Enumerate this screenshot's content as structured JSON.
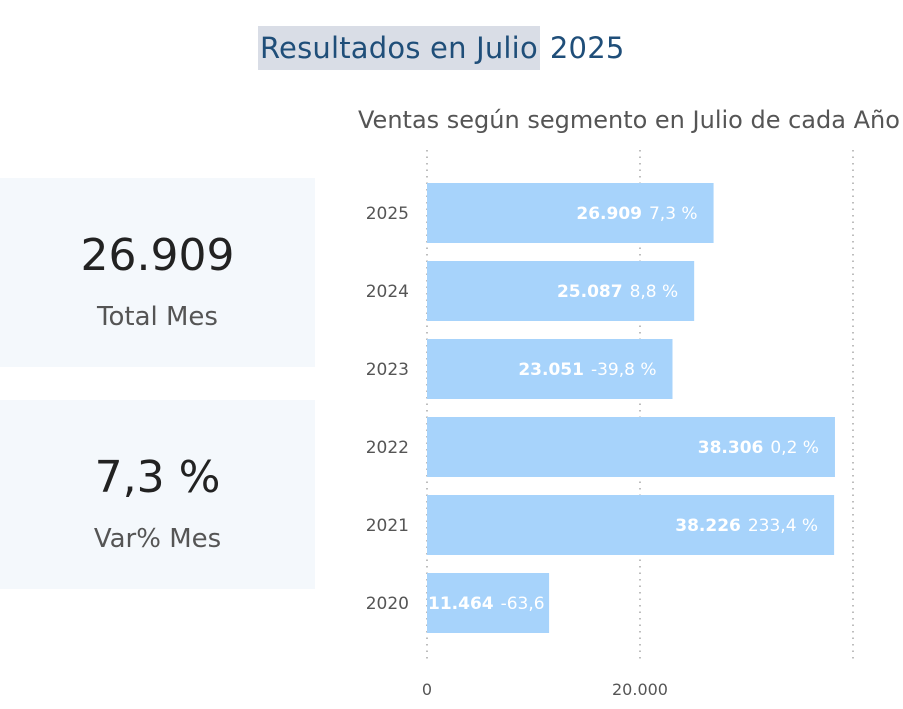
{
  "page": {
    "title_main": "Resultados en Julio",
    "title_year": "2025"
  },
  "kpis": [
    {
      "value": "26.909",
      "label": "Total Mes"
    },
    {
      "value": "7,3 %",
      "label": "Var% Mes"
    }
  ],
  "chart_data": {
    "type": "bar",
    "orientation": "horizontal",
    "title": "Ventas según segmento en Julio de cada Año",
    "categories": [
      "2025",
      "2024",
      "2023",
      "2022",
      "2021",
      "2020"
    ],
    "values": [
      26909,
      25087,
      23051,
      38306,
      38226,
      11464
    ],
    "value_labels": [
      "26.909",
      "25.087",
      "23.051",
      "38.306",
      "38.226",
      "11.464"
    ],
    "pct_labels": [
      "7,3 %",
      "8,8 %",
      "-39,8 %",
      "0,2 %",
      "233,4 %",
      "-63,6"
    ],
    "x_ticks": [
      {
        "value": 0,
        "label": "0"
      },
      {
        "value": 20000,
        "label": "20.000"
      }
    ],
    "xlim": [
      0,
      40000
    ],
    "bar_color": "#a7d3fb",
    "grid": true
  }
}
